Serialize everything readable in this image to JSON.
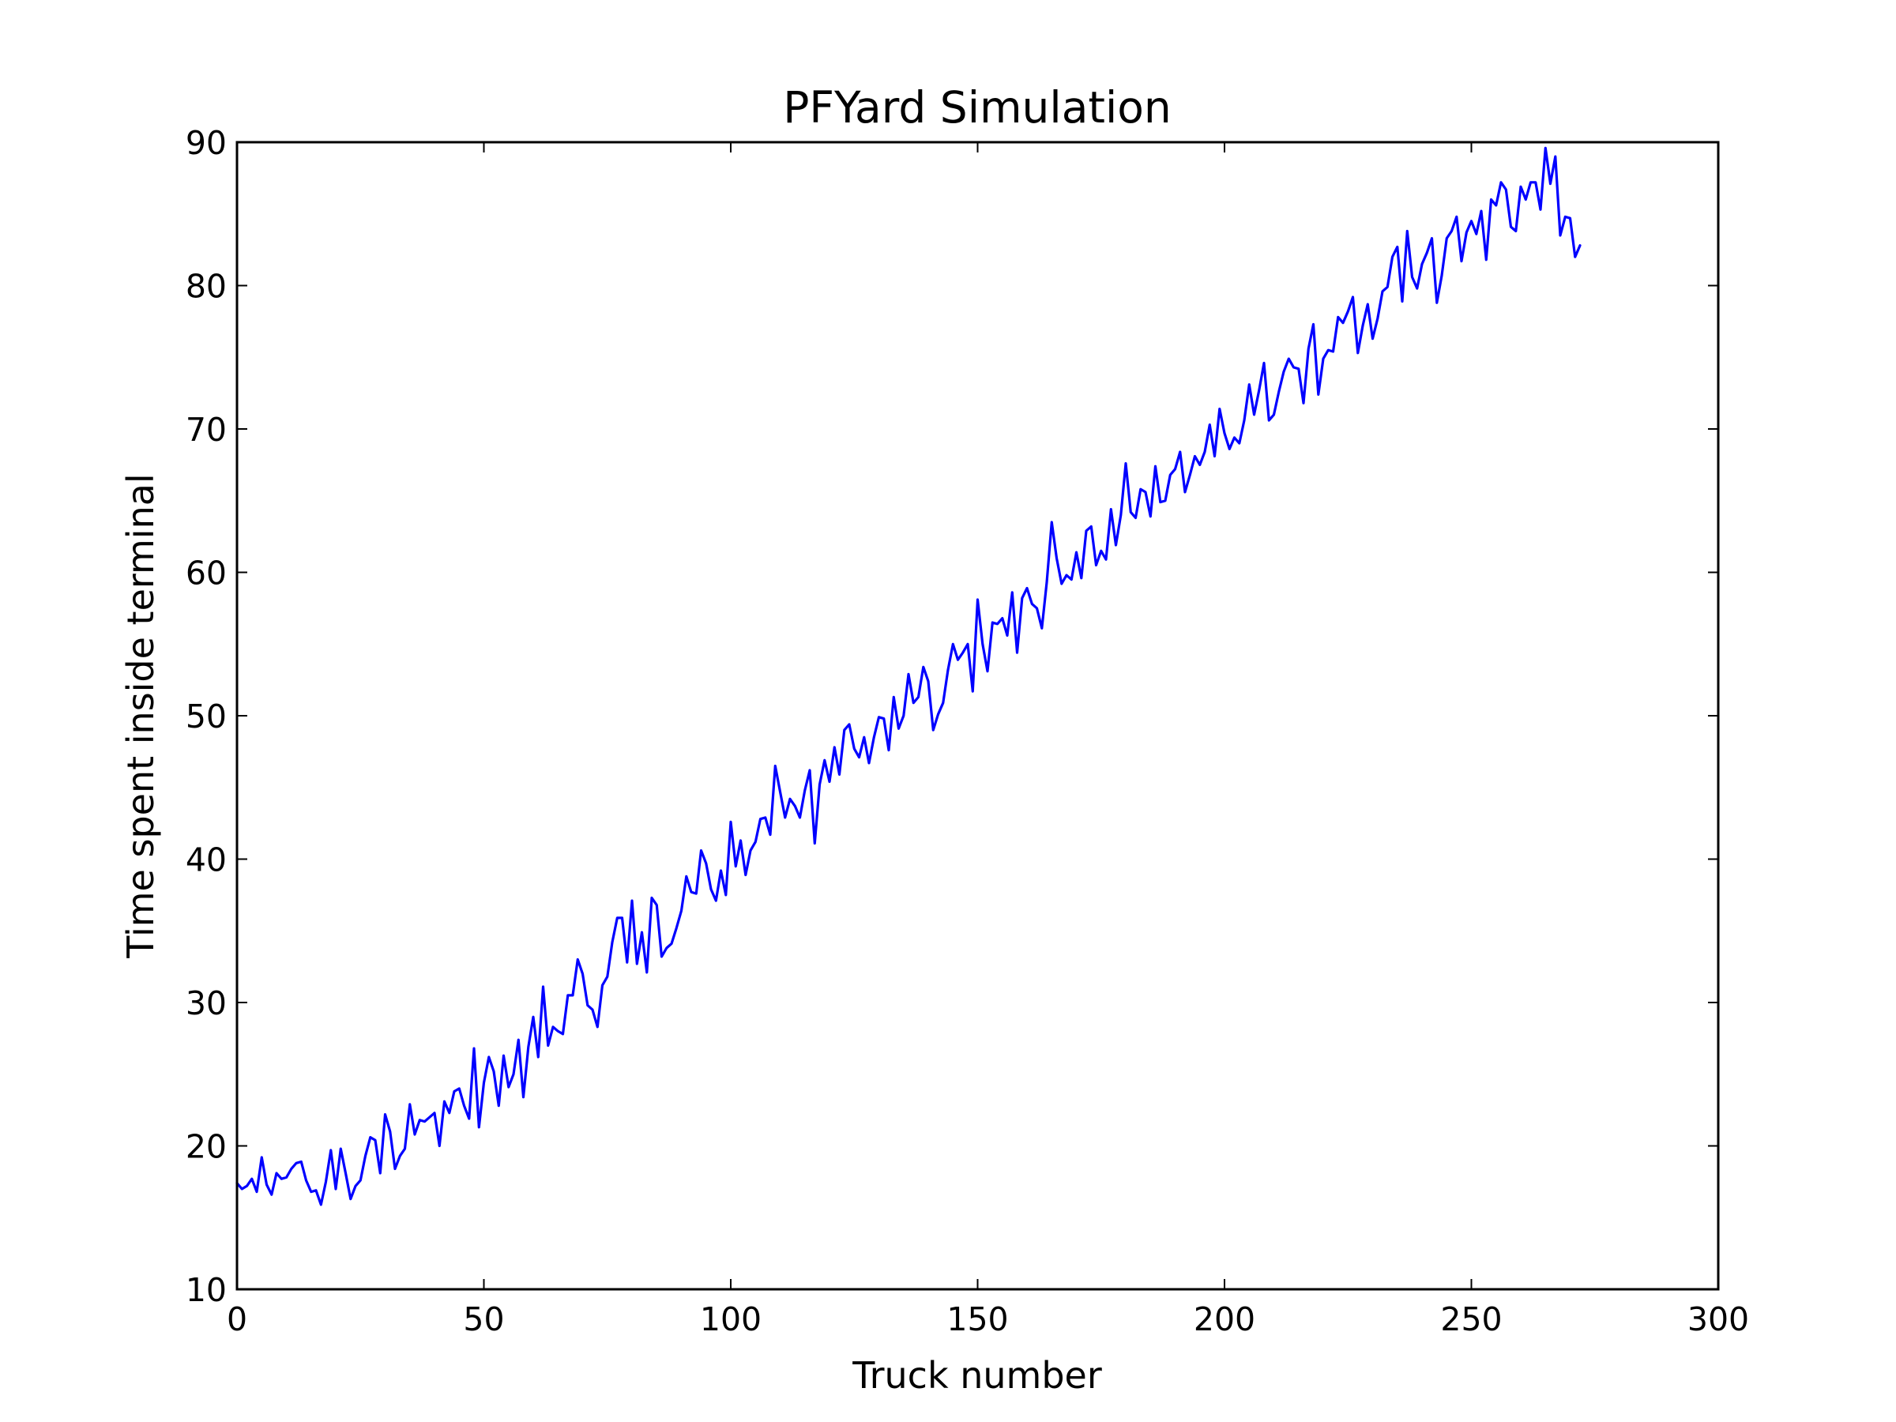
{
  "chart_data": {
    "type": "line",
    "title": "PFYard Simulation",
    "xlabel": "Truck number",
    "ylabel": "Time spent inside terminal",
    "xlim": [
      0,
      300
    ],
    "ylim": [
      10,
      90
    ],
    "x_ticks": [
      0,
      50,
      100,
      150,
      200,
      250,
      300
    ],
    "y_ticks": [
      10,
      20,
      30,
      40,
      50,
      60,
      70,
      80,
      90
    ],
    "x_tick_labels": [
      "0",
      "50",
      "100",
      "150",
      "200",
      "250",
      "300"
    ],
    "y_tick_labels": [
      "10",
      "20",
      "30",
      "40",
      "50",
      "60",
      "70",
      "80",
      "90"
    ],
    "grid": false,
    "line_color": "#0000ff",
    "series": [
      {
        "x_start": 0,
        "x_step": 1,
        "values": [
          17.4,
          17.0,
          17.2,
          17.7,
          16.8,
          19.2,
          17.3,
          16.6,
          18.1,
          17.7,
          17.8,
          18.4,
          18.8,
          18.9,
          17.6,
          16.8,
          16.9,
          15.9,
          17.5,
          19.7,
          17.0,
          19.8,
          18.1,
          16.3,
          17.2,
          17.6,
          19.3,
          20.6,
          20.4,
          18.1,
          22.2,
          21.0,
          18.4,
          19.3,
          19.8,
          22.9,
          20.8,
          21.8,
          21.7,
          22.0,
          22.3,
          20.0,
          23.1,
          22.3,
          23.8,
          24.0,
          22.8,
          21.9,
          26.8,
          21.3,
          24.4,
          26.2,
          25.2,
          22.8,
          26.3,
          24.1,
          25.0,
          27.4,
          23.4,
          26.9,
          29.0,
          26.2,
          31.1,
          27.0,
          28.3,
          28.0,
          27.8,
          30.5,
          30.5,
          33.0,
          32.0,
          29.8,
          29.5,
          28.3,
          31.2,
          31.8,
          34.2,
          35.9,
          35.9,
          32.8,
          37.1,
          32.7,
          34.9,
          32.1,
          37.3,
          36.8,
          33.2,
          33.8,
          34.1,
          35.2,
          36.4,
          38.8,
          37.7,
          37.6,
          40.6,
          39.7,
          37.9,
          37.1,
          39.2,
          37.5,
          42.6,
          39.5,
          41.3,
          38.9,
          40.6,
          41.2,
          42.8,
          42.9,
          41.7,
          46.5,
          44.7,
          42.9,
          44.2,
          43.7,
          42.9,
          44.8,
          46.2,
          41.1,
          45.2,
          46.9,
          45.4,
          47.8,
          45.9,
          49.0,
          49.4,
          47.7,
          47.1,
          48.5,
          46.7,
          48.5,
          49.9,
          49.8,
          47.6,
          51.3,
          49.1,
          50.0,
          52.9,
          50.9,
          51.3,
          53.4,
          52.4,
          49.0,
          50.1,
          50.9,
          53.2,
          55.0,
          53.9,
          54.4,
          55.0,
          51.7,
          58.1,
          55.0,
          53.1,
          56.5,
          56.4,
          56.8,
          55.6,
          58.6,
          54.4,
          58.2,
          58.9,
          57.8,
          57.5,
          56.1,
          59.3,
          63.5,
          61.0,
          59.2,
          59.8,
          59.5,
          61.4,
          59.6,
          62.9,
          63.2,
          60.5,
          61.5,
          60.9,
          64.4,
          61.9,
          64.0,
          67.6,
          64.2,
          63.8,
          65.8,
          65.6,
          63.9,
          67.4,
          64.9,
          65.0,
          66.8,
          67.2,
          68.4,
          65.6,
          66.8,
          68.1,
          67.5,
          68.4,
          70.3,
          68.1,
          71.4,
          69.7,
          68.6,
          69.4,
          69.0,
          70.6,
          73.1,
          71.0,
          72.7,
          74.6,
          70.6,
          71.0,
          72.6,
          74.0,
          74.9,
          74.3,
          74.2,
          71.8,
          75.6,
          77.3,
          72.4,
          74.9,
          75.5,
          75.4,
          77.8,
          77.4,
          78.2,
          79.2,
          75.3,
          77.2,
          78.7,
          76.3,
          77.7,
          79.6,
          79.9,
          82.0,
          82.7,
          78.9,
          83.8,
          80.6,
          79.8,
          81.5,
          82.3,
          83.3,
          78.8,
          80.7,
          83.3,
          83.8,
          84.8,
          81.7,
          83.7,
          84.5,
          83.6,
          85.2,
          81.8,
          86.0,
          85.6,
          87.2,
          86.7,
          84.1,
          83.8,
          86.9,
          86.0,
          87.2,
          87.2,
          85.3,
          89.6,
          87.1,
          89.0,
          83.5,
          84.8,
          84.7,
          82.0,
          82.8
        ]
      }
    ]
  }
}
